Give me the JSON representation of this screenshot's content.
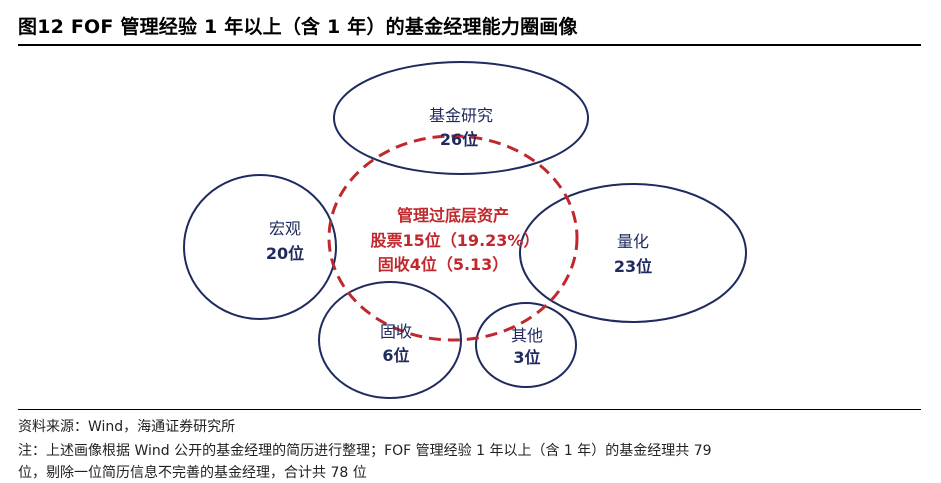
{
  "title": "图12 FOF 管理经验 1 年以上（含 1 年）的基金经理能力圈画像",
  "circles": {
    "research": {
      "name": "基金研究",
      "count": "26位"
    },
    "macro": {
      "name": "宏观",
      "count": "20位"
    },
    "quant": {
      "name": "量化",
      "count": "23位"
    },
    "fixed_income": {
      "name": "固收",
      "count": "6位"
    },
    "other": {
      "name": "其他",
      "count": "3位"
    }
  },
  "center": {
    "line1": "管理过底层资产",
    "line2": "股票15位（19.23%）",
    "line3": "固收4位（5.13）"
  },
  "colors": {
    "circle_stroke": "#1f2a5e",
    "dashed_stroke": "#c0282d"
  },
  "source": "资料来源：Wind，海通证券研究所",
  "note_line1": "注：上述画像根据 Wind 公开的基金经理的简历进行整理；FOF 管理经验 1 年以上（含 1 年）的基金经理共 79",
  "note_line2": "位，剔除一位简历信息不完善的基金经理，合计共 78 位"
}
